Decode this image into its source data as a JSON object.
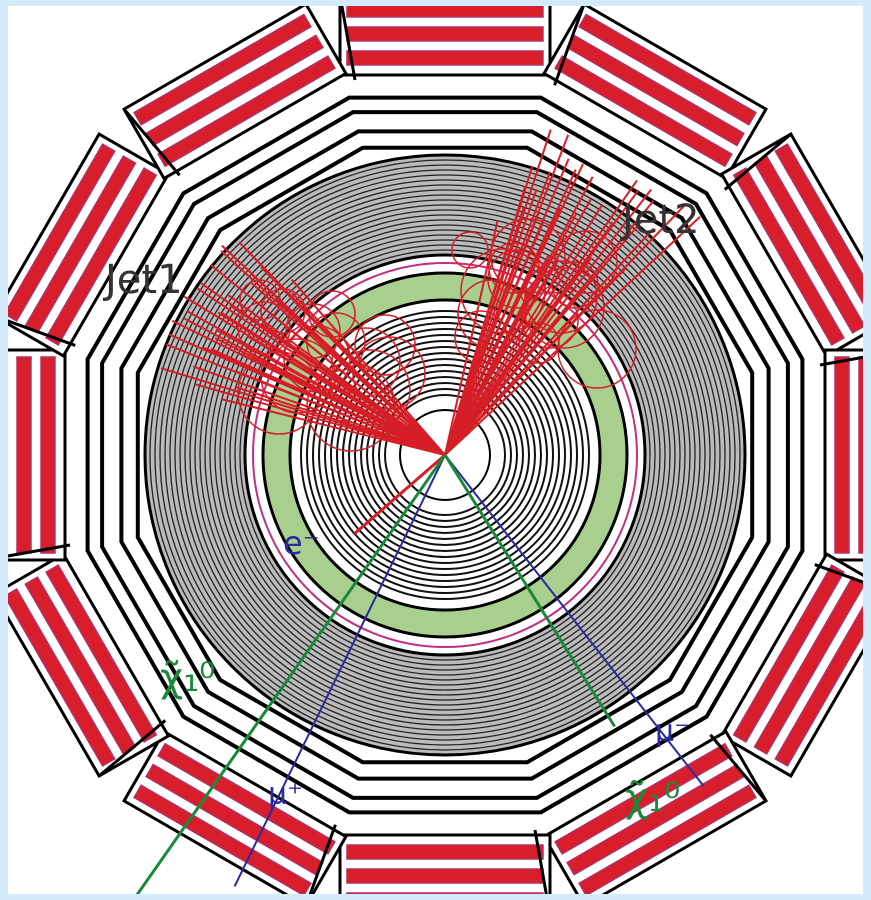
{
  "labels": [
    {
      "text": "Jet1",
      "kind": "jet"
    },
    {
      "text": "Jet2",
      "kind": "jet"
    },
    {
      "text": "e⁻",
      "kind": "electron"
    },
    {
      "text": "μ⁺",
      "kind": "muon"
    },
    {
      "text": "μ⁻",
      "kind": "muon"
    },
    {
      "text": "χ̃₁⁰",
      "kind": "neutralino"
    },
    {
      "text": "χ̃₁⁰",
      "kind": "neutralino"
    }
  ]
}
